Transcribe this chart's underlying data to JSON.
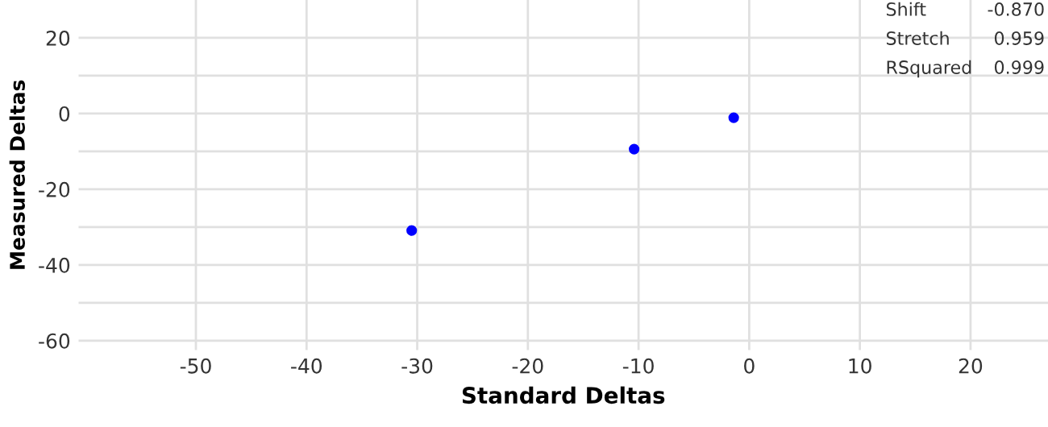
{
  "chart_data": {
    "type": "scatter",
    "xlabel": "Standard Deltas",
    "ylabel": "Measured Deltas",
    "x": [
      -30.5,
      -10.4,
      -1.4
    ],
    "series": [
      {
        "color": "#0000ff",
        "values": [
          -30.9,
          -9.4,
          -1.1
        ]
      }
    ],
    "xlim": [
      -60.6,
      27
    ],
    "ylim": [
      -62.5,
      30
    ],
    "xticks": [
      -50,
      -40,
      -30,
      -20,
      -10,
      0,
      10,
      20
    ],
    "yticks": [
      {
        "value": -60,
        "label": "-60"
      },
      {
        "value": -50,
        "label": null
      },
      {
        "value": -40,
        "label": "-40"
      },
      {
        "value": -30,
        "label": null
      },
      {
        "value": -20,
        "label": "-20"
      },
      {
        "value": -10,
        "label": null
      },
      {
        "value": 0,
        "label": "0"
      },
      {
        "value": 10,
        "label": null
      },
      {
        "value": 20,
        "label": "20"
      }
    ],
    "grid": true,
    "marker": "circle",
    "annotations": [
      "Shift",
      "-0.870",
      "Stretch",
      "0.959",
      "RSquared",
      "0.999"
    ]
  }
}
